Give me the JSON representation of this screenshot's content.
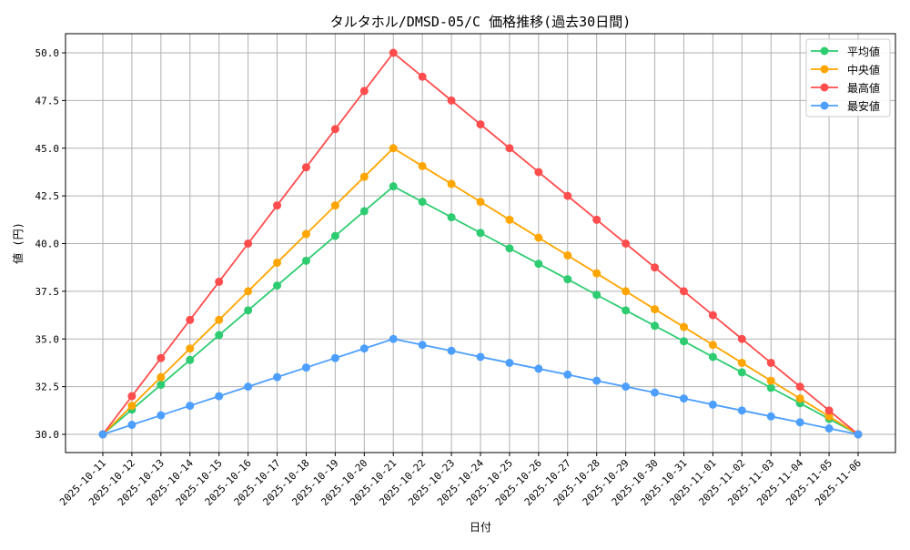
{
  "chart_data": {
    "type": "line",
    "title": "タルタホル/DMSD-05/C 価格推移(過去30日間)",
    "xlabel": "日付",
    "ylabel": "値 (円)",
    "ylim": [
      29,
      51
    ],
    "yticks": [
      "30.0",
      "32.5",
      "35.0",
      "37.5",
      "40.0",
      "42.5",
      "45.0",
      "47.5",
      "50.0"
    ],
    "grid": true,
    "legend_position": "top-right",
    "categories": [
      "2025-10-11",
      "2025-10-12",
      "2025-10-13",
      "2025-10-14",
      "2025-10-15",
      "2025-10-16",
      "2025-10-17",
      "2025-10-18",
      "2025-10-19",
      "2025-10-20",
      "2025-10-21",
      "2025-10-22",
      "2025-10-23",
      "2025-10-24",
      "2025-10-25",
      "2025-10-26",
      "2025-10-27",
      "2025-10-28",
      "2025-10-29",
      "2025-10-30",
      "2025-10-31",
      "2025-11-01",
      "2025-11-02",
      "2025-11-03",
      "2025-11-04",
      "2025-11-05",
      "2025-11-06"
    ],
    "series": [
      {
        "name": "平均値",
        "color": "#2ecc71",
        "values": [
          30,
          31.3,
          32.6,
          33.9,
          35.2,
          36.5,
          37.8,
          39.1,
          40.4,
          41.7,
          43,
          42.19,
          41.38,
          40.56,
          39.75,
          38.94,
          38.13,
          37.31,
          36.5,
          35.69,
          34.88,
          34.06,
          33.25,
          32.44,
          31.63,
          30.81,
          30
        ]
      },
      {
        "name": "中央値",
        "color": "#ffa500",
        "values": [
          30,
          31.5,
          33,
          34.5,
          36,
          37.5,
          39,
          40.5,
          42,
          43.5,
          45,
          44.06,
          43.13,
          42.19,
          41.25,
          40.31,
          39.38,
          38.44,
          37.5,
          36.56,
          35.63,
          34.69,
          33.75,
          32.81,
          31.88,
          30.94,
          30
        ]
      },
      {
        "name": "最高値",
        "color": "#ff4d4d",
        "values": [
          30,
          32,
          34,
          36,
          38,
          40,
          42,
          44,
          46,
          48,
          50,
          48.75,
          47.5,
          46.25,
          45,
          43.75,
          42.5,
          41.25,
          40,
          38.75,
          37.5,
          36.25,
          35,
          33.75,
          32.5,
          31.25,
          30
        ]
      },
      {
        "name": "最安値",
        "color": "#4d9fff",
        "values": [
          30,
          30.5,
          31,
          31.5,
          32,
          32.5,
          33,
          33.5,
          34,
          34.5,
          35,
          34.69,
          34.38,
          34.06,
          33.75,
          33.44,
          33.13,
          32.81,
          32.5,
          32.19,
          31.88,
          31.56,
          31.25,
          30.94,
          30.63,
          30.31,
          30
        ]
      }
    ]
  }
}
